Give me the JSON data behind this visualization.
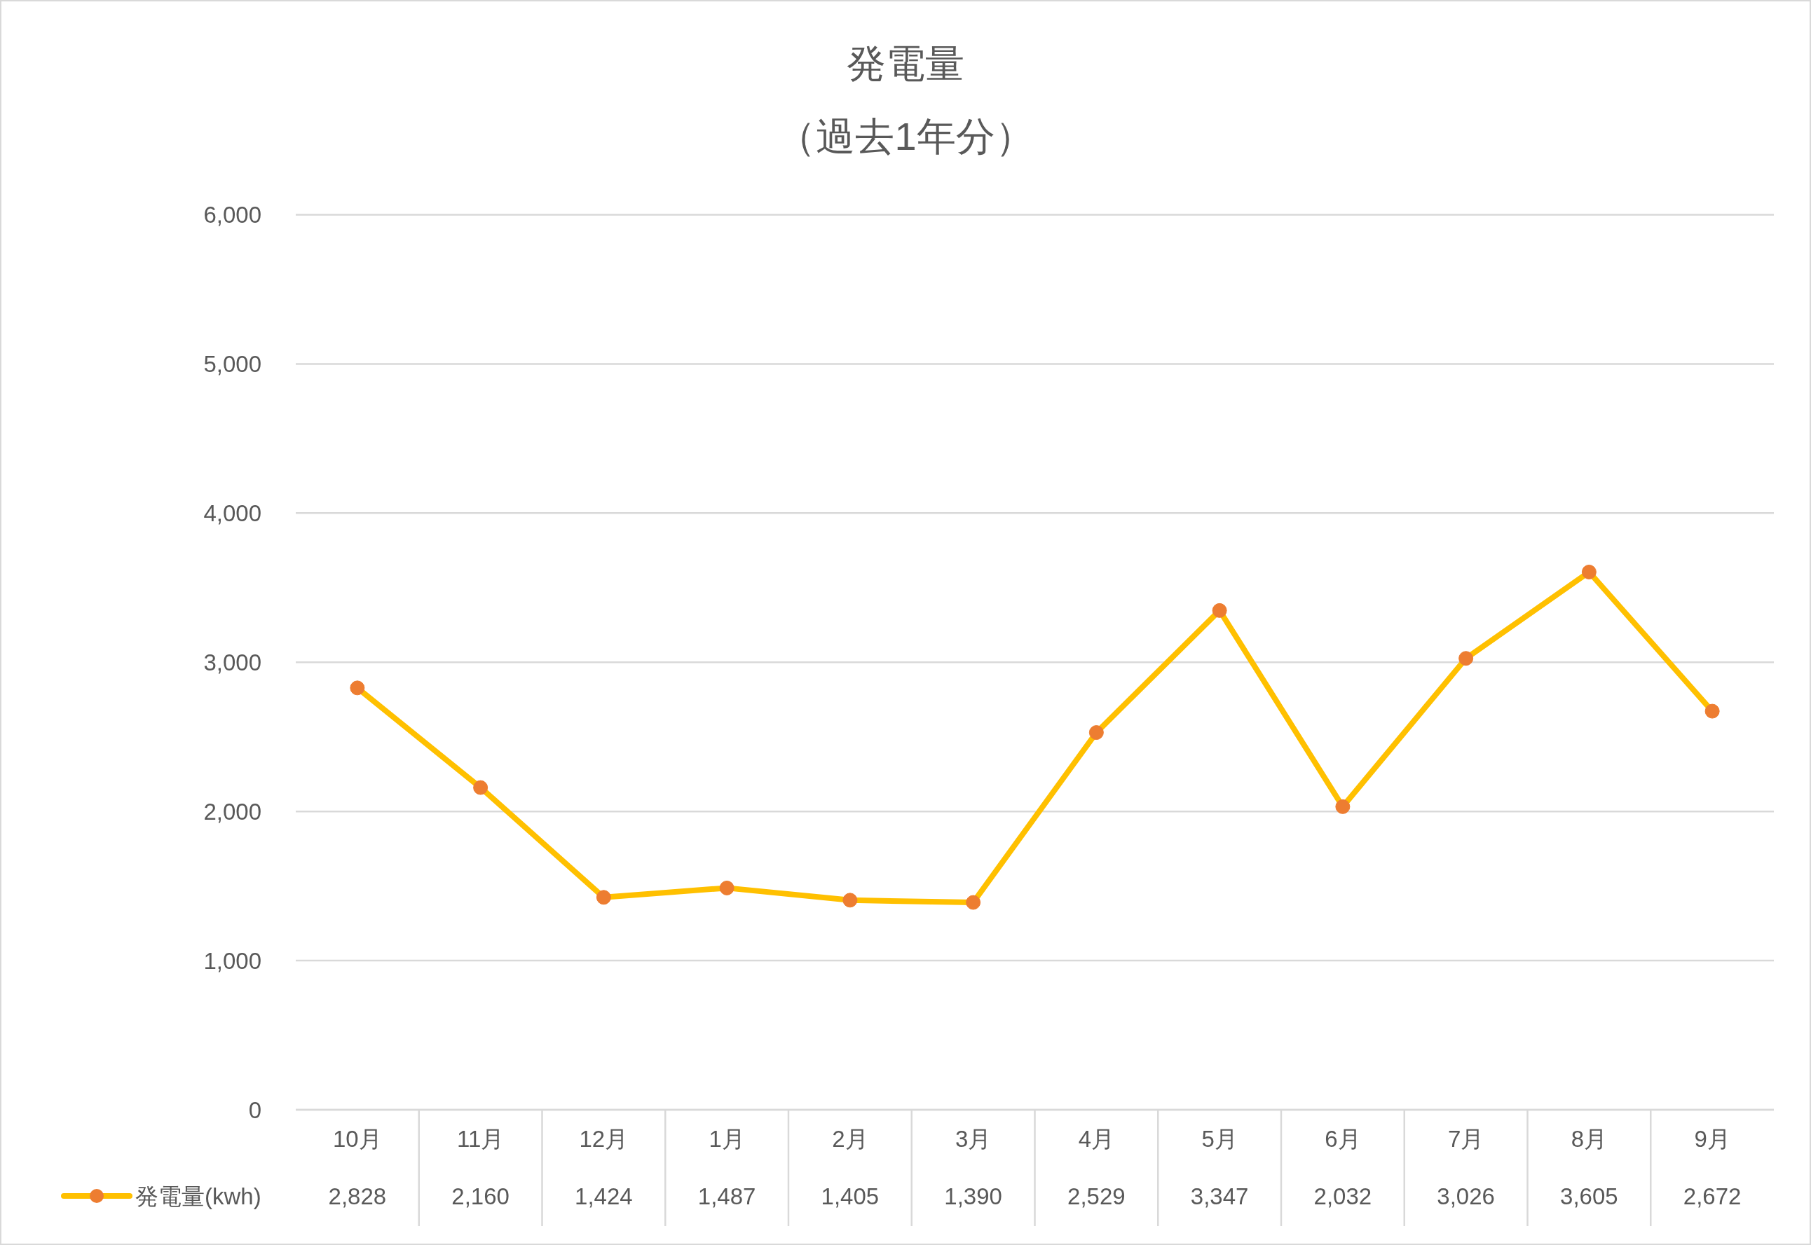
{
  "chart_data": {
    "type": "line",
    "title": "発電量",
    "subtitle": "（過去1年分）",
    "categories": [
      "10月",
      "11月",
      "12月",
      "1月",
      "2月",
      "3月",
      "4月",
      "5月",
      "6月",
      "7月",
      "8月",
      "9月"
    ],
    "series": [
      {
        "name": "発電量(kwh)",
        "color": "#ffc000",
        "values": [
          2828,
          2160,
          1424,
          1487,
          1405,
          1390,
          2529,
          3347,
          2032,
          3026,
          3605,
          2672
        ],
        "value_labels": [
          "2,828",
          "2,160",
          "1,424",
          "1,487",
          "1,405",
          "1,390",
          "2,529",
          "3,347",
          "2,032",
          "3,026",
          "3,605",
          "2,672"
        ]
      }
    ],
    "ylim": [
      0,
      6000
    ],
    "yticks": [
      0,
      {
        "value": 1000,
        "label": "1,000"
      },
      {
        "value": 2000,
        "label": "2,000"
      },
      {
        "value": 3000,
        "label": "3,000"
      },
      {
        "value": 4000,
        "label": "4,000"
      },
      {
        "value": 5000,
        "label": "5,000"
      },
      {
        "value": 6000,
        "label": "6,000"
      }
    ],
    "grid": "y",
    "legend": "bottom left",
    "marker": "circle"
  }
}
